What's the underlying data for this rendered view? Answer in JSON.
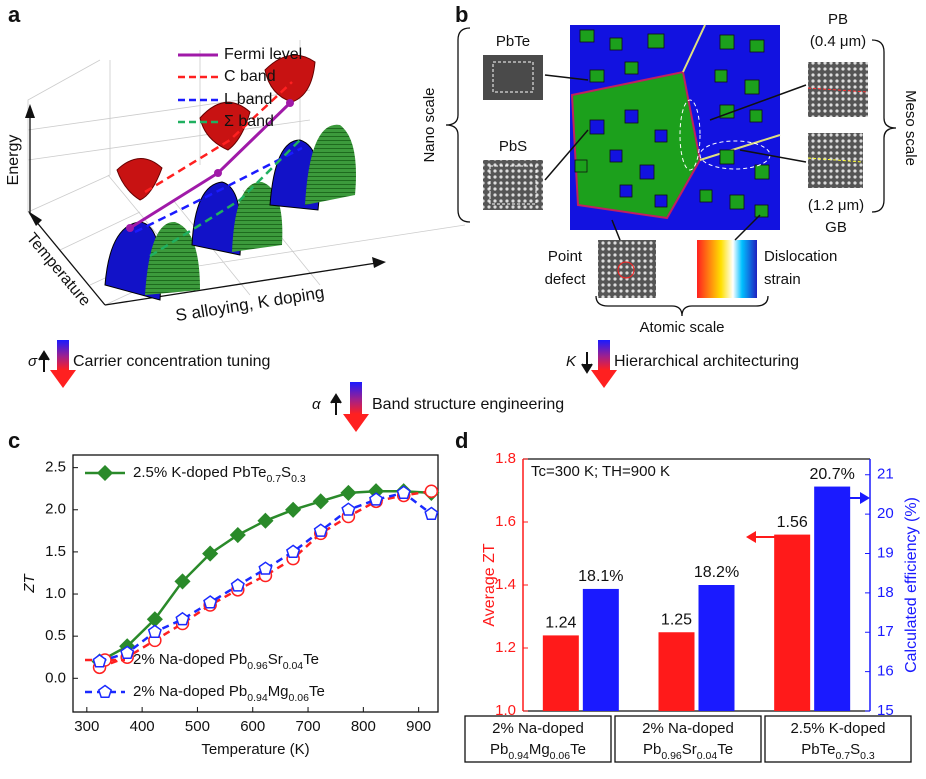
{
  "panels": [
    "a",
    "b",
    "c",
    "d"
  ],
  "panel_a": {
    "legend": [
      "Fermi level",
      "C band",
      "L band",
      "Σ band"
    ],
    "axis_labels": [
      "Energy",
      "Temperature",
      "S alloying, K doping"
    ]
  },
  "panel_b": {
    "nano_scale": "Nano scale",
    "meso_scale": "Meso scale",
    "pbte": "PbTe",
    "pbs": "PbS",
    "pb": "PB",
    "pb_size": "(0.4 μm)",
    "gb_size": "(1.2 μm)",
    "gb": "GB",
    "point_defect": [
      "Point",
      "defect"
    ],
    "dislocation": [
      "Dislocation",
      "strain"
    ],
    "atomic_scale": "Atomic scale"
  },
  "strategies": [
    {
      "symbol": "σ",
      "text": "Carrier concentration tuning"
    },
    {
      "symbol": "α",
      "text": "Band structure engineering"
    },
    {
      "symbol": "K",
      "text": "Hierarchical architecturing"
    }
  ],
  "chart_data": [
    {
      "type": "line",
      "x_label": "Temperature (K)",
      "y_label": "ZT",
      "xlim": [
        275,
        935
      ],
      "xticks": [
        300,
        400,
        500,
        600,
        700,
        800,
        900
      ],
      "ylim": [
        -0.4,
        2.65
      ],
      "yticks": [
        {
          "value": 0,
          "label": "0.0"
        },
        0.5,
        {
          "value": 1,
          "label": "1.0"
        },
        1.5,
        {
          "value": 2,
          "label": "2.0"
        },
        2.5
      ],
      "x": [
        323,
        373,
        423,
        473,
        523,
        573,
        623,
        673,
        723,
        773,
        823,
        873,
        923
      ],
      "series": [
        {
          "name": "2.5% K-doped PbTe0.7S0.3",
          "color": "#2a8a2a",
          "marker": "diamond",
          "filled": true,
          "dash": "solid",
          "values": [
            0.2,
            0.38,
            0.7,
            1.15,
            1.48,
            1.7,
            1.87,
            2.0,
            2.1,
            2.2,
            2.22,
            2.22,
            2.2
          ]
        },
        {
          "name": "2% Na-doped Pb0.96Sr0.04Te",
          "color": "#ff2020",
          "marker": "circle",
          "filled": false,
          "dash": "dashed",
          "values": [
            0.13,
            0.25,
            0.45,
            0.65,
            0.87,
            1.05,
            1.22,
            1.42,
            1.72,
            1.92,
            2.1,
            2.17,
            2.22
          ]
        },
        {
          "name": "2% Na-doped Pb0.94Mg0.06Te",
          "color": "#1a2aff",
          "marker": "pentagon",
          "filled": false,
          "dash": "dashed",
          "values": [
            0.2,
            0.3,
            0.55,
            0.7,
            0.9,
            1.1,
            1.3,
            1.5,
            1.75,
            2.0,
            2.12,
            2.2,
            1.95
          ]
        }
      ]
    },
    {
      "type": "bar",
      "annotation": "Tc=300 K; TH=900 K",
      "y_label": "Average ZT",
      "y2_label": "Calculated efficiency (%)",
      "categories": [
        "2% Na-doped Pb0.94Mg0.06Te",
        "2% Na-doped Pb0.96Sr0.04Te",
        "2.5% K-doped PbTe0.7S0.3"
      ],
      "ylim": [
        1.0,
        1.8
      ],
      "yticks": [
        {
          "value": 1,
          "label": "1.0"
        },
        1.2,
        1.4,
        1.6,
        1.8
      ],
      "y2lim": [
        15,
        21.4
      ],
      "y2ticks": [
        15,
        16,
        17,
        18,
        19,
        20,
        21
      ],
      "series": [
        {
          "color": "#ff1a1a",
          "values": [
            1.24,
            1.25,
            1.56
          ]
        },
        {
          "color": "#1a1aff",
          "axis": "y2",
          "values": [
            18.1,
            18.2,
            20.7
          ],
          "value_labels": [
            "18.1%",
            "18.2%",
            "20.7%"
          ]
        }
      ]
    }
  ]
}
